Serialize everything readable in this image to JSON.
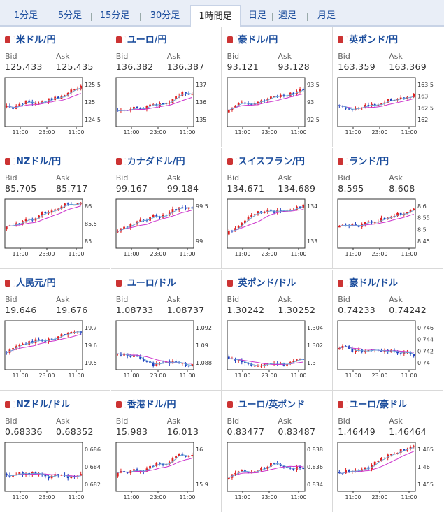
{
  "tabs": [
    {
      "label": "1分足"
    },
    {
      "label": "5分足"
    },
    {
      "label": "15分足"
    },
    {
      "label": "30分足"
    },
    {
      "label": "1時間足",
      "active": true
    },
    {
      "label": "日足"
    },
    {
      "label": "週足"
    },
    {
      "label": "月足"
    }
  ],
  "colors": {
    "accent": "#1a4c9c",
    "up": "#e02020",
    "down": "#1f3fbf",
    "ma": "#cc33cc",
    "ma2": "#6aa7d8"
  },
  "x_ticks": [
    "11:00",
    "23:00",
    "11:00"
  ],
  "pairs": [
    {
      "name": "米ドル/円",
      "flag": "us-jp-flag-icon",
      "bid": "125.433",
      "ask": "125.435",
      "yticks": [
        "125.5",
        "125",
        "124.5"
      ]
    },
    {
      "name": "ユーロ/円",
      "flag": "eu-jp-flag-icon",
      "bid": "136.382",
      "ask": "136.387",
      "yticks": [
        "137",
        "136",
        "135"
      ]
    },
    {
      "name": "豪ドル/円",
      "flag": "au-jp-flag-icon",
      "bid": "93.121",
      "ask": "93.128",
      "yticks": [
        "93.5",
        "93",
        "92.5"
      ]
    },
    {
      "name": "英ポンド/円",
      "flag": "gb-jp-flag-icon",
      "bid": "163.359",
      "ask": "163.369",
      "yticks": [
        "163.5",
        "163",
        "162.5",
        "162"
      ]
    },
    {
      "name": "NZドル/円",
      "flag": "nz-jp-flag-icon",
      "bid": "85.705",
      "ask": "85.717",
      "yticks": [
        "86",
        "85.5",
        "85"
      ]
    },
    {
      "name": "カナダドル/円",
      "flag": "ca-jp-flag-icon",
      "bid": "99.167",
      "ask": "99.184",
      "yticks": [
        "99.5",
        "99"
      ]
    },
    {
      "name": "スイスフラン/円",
      "flag": "ch-jp-flag-icon",
      "bid": "134.671",
      "ask": "134.689",
      "yticks": [
        "134",
        "133"
      ]
    },
    {
      "name": "ランド/円",
      "flag": "za-jp-flag-icon",
      "bid": "8.595",
      "ask": "8.608",
      "yticks": [
        "8.6",
        "8.55",
        "8.5",
        "8.45"
      ]
    },
    {
      "name": "人民元/円",
      "flag": "cn-jp-flag-icon",
      "bid": "19.646",
      "ask": "19.676",
      "yticks": [
        "19.7",
        "19.6",
        "19.5"
      ]
    },
    {
      "name": "ユーロ/ドル",
      "flag": "eu-us-flag-icon",
      "bid": "1.08733",
      "ask": "1.08737",
      "yticks": [
        "1.092",
        "1.09",
        "1.088"
      ]
    },
    {
      "name": "英ポンド/ドル",
      "flag": "gb-us-flag-icon",
      "bid": "1.30242",
      "ask": "1.30252",
      "yticks": [
        "1.304",
        "1.302",
        "1.3"
      ]
    },
    {
      "name": "豪ドル/ドル",
      "flag": "au-us-flag-icon",
      "bid": "0.74233",
      "ask": "0.74242",
      "yticks": [
        "0.746",
        "0.744",
        "0.742",
        "0.74"
      ]
    },
    {
      "name": "NZドル/ドル",
      "flag": "nz-us-flag-icon",
      "bid": "0.68336",
      "ask": "0.68352",
      "yticks": [
        "0.686",
        "0.684",
        "0.682"
      ]
    },
    {
      "name": "香港ドル/円",
      "flag": "hk-jp-flag-icon",
      "bid": "15.983",
      "ask": "16.013",
      "yticks": [
        "16",
        "15.9"
      ]
    },
    {
      "name": "ユーロ/英ポンド",
      "flag": "eu-gb-flag-icon",
      "bid": "0.83477",
      "ask": "0.83487",
      "yticks": [
        "0.838",
        "0.836",
        "0.834"
      ]
    },
    {
      "name": "ユーロ/豪ドル",
      "flag": "eu-au-flag-icon",
      "bid": "1.46449",
      "ask": "1.46464",
      "yticks": [
        "1.465",
        "1.46",
        "1.455"
      ]
    }
  ],
  "labels": {
    "bid": "Bid",
    "ask": "Ask"
  }
}
